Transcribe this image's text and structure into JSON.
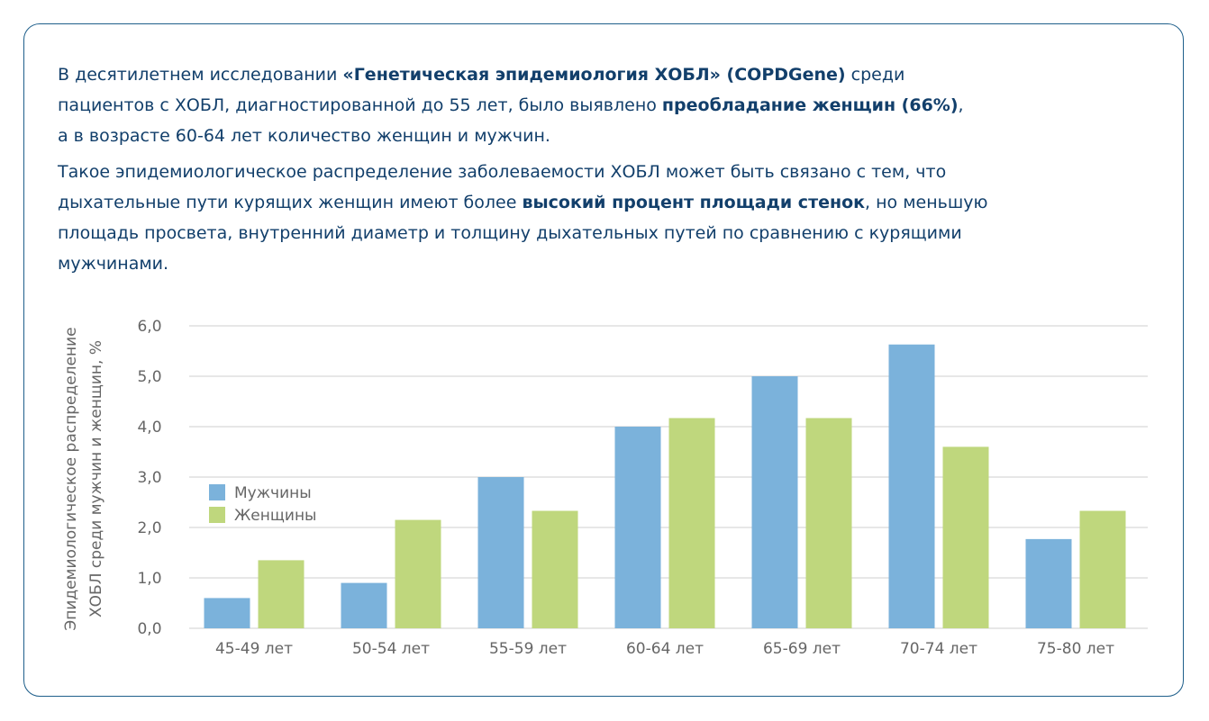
{
  "paragraph1": [
    {
      "t": "В десятилетнем исследовании ",
      "b": false
    },
    {
      "t": "«Генетическая эпидемиология ХОБЛ» (COPDGene)",
      "b": true
    },
    {
      "t": " среди",
      "b": false
    },
    {
      "br": true
    },
    {
      "t": "пациентов с ХОБЛ, диагностированной до 55 лет, было выявлено ",
      "b": false
    },
    {
      "t": "преобладание женщин (66%)",
      "b": true
    },
    {
      "t": ",",
      "b": false
    },
    {
      "br": true
    },
    {
      "t": "а в возрасте 60-64 лет количество женщин и мужчин.",
      "b": false
    }
  ],
  "paragraph2": [
    {
      "t": "Такое эпидемиологическое распределение заболеваемости ХОБЛ может быть связано с тем, что",
      "b": false
    },
    {
      "br": true
    },
    {
      "t": "дыхательные пути курящих женщин имеют более ",
      "b": false
    },
    {
      "t": "высокий процент площади стенок",
      "b": true
    },
    {
      "t": ", но меньшую",
      "b": false
    },
    {
      "br": true
    },
    {
      "t": "площадь просвета, внутренний диаметр и толщину дыхательных путей по сравнению с курящими",
      "b": false
    },
    {
      "br": true
    },
    {
      "t": "мужчинами.",
      "b": false
    }
  ],
  "chart_data": {
    "type": "bar",
    "categories": [
      "45-49 лет",
      "50-54 лет",
      "55-59 лет",
      "60-64 лет",
      "65-69 лет",
      "70-74 лет",
      "75-80 лет"
    ],
    "series": [
      {
        "name": "Мужчины",
        "color": "#7bb2db",
        "values": [
          0.6,
          0.9,
          3.0,
          4.0,
          5.0,
          5.63,
          1.77
        ]
      },
      {
        "name": "Женщины",
        "color": "#bfd77d",
        "values": [
          1.35,
          2.15,
          2.33,
          4.17,
          4.17,
          3.6,
          2.33
        ]
      }
    ],
    "ylabel_lines": [
      "Эпидемиологическое распределение",
      "ХОБЛ среди мужчин и женщин, %"
    ],
    "ylim": [
      0,
      6
    ],
    "yticks": [
      "0,0",
      "1,0",
      "2,0",
      "3,0",
      "4,0",
      "5,0",
      "6,0"
    ],
    "grid": true,
    "legend_position": "left"
  },
  "colors": {
    "text": "#123f6b",
    "border": "#1f5f8b",
    "axis_text": "#666666",
    "grid": "#cfcfcf"
  }
}
